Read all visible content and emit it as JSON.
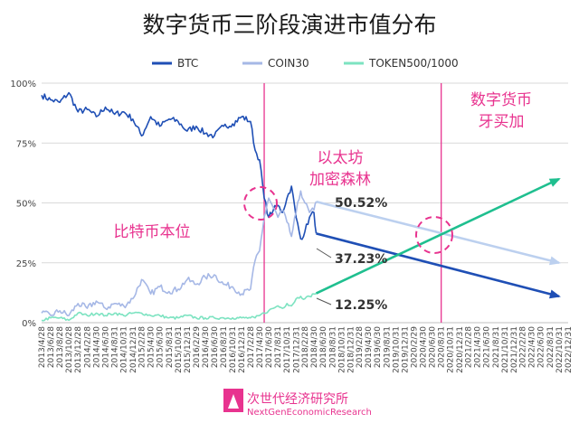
{
  "chart_data": {
    "type": "line",
    "title": "数字货币三阶段演进市值分布",
    "ylim": [
      0,
      100
    ],
    "y_ticks": [
      "0%",
      "25%",
      "50%",
      "75%",
      "100%"
    ],
    "x_ticks": [
      "2013/4/28",
      "2013/6/28",
      "2013/8/28",
      "2013/10/28",
      "2013/12/28",
      "2014/2/28",
      "2014/4/30",
      "2014/6/30",
      "2014/8/31",
      "2014/10/31",
      "2014/12/31",
      "2015/2/28",
      "2015/4/30",
      "2015/6/30",
      "2015/8/31",
      "2015/10/31",
      "2015/12/31",
      "2016/2/29",
      "2016/4/30",
      "2016/6/30",
      "2016/8/31",
      "2016/10/31",
      "2016/12/31",
      "2017/2/28",
      "2017/4/30",
      "2017/6/30",
      "2017/8/31",
      "2017/10/31",
      "2017/12/31",
      "2018/2/28",
      "2018/4/30",
      "2018/6/30",
      "2018/8/31",
      "2018/10/31",
      "2018/12/31",
      "2019/2/28",
      "2019/4/30",
      "2019/6/30",
      "2019/8/31",
      "2019/10/31",
      "2019/12/31",
      "2020/2/29",
      "2020/4/30",
      "2020/6/30",
      "2020/8/31",
      "2020/10/31",
      "2020/12/31",
      "2021/2/28",
      "2021/4/30",
      "2021/6/30",
      "2021/8/31",
      "2021/10/31",
      "2021/12/31",
      "2022/2/28",
      "2022/4/30",
      "2022/6/30",
      "2022/8/31",
      "2022/10/31",
      "2022/12/31"
    ],
    "grid": true,
    "legend_placement": "top",
    "series": [
      {
        "name": "BTC",
        "color": "#1f4fb5",
        "values": [
          [
            "2013/4/28",
            95
          ],
          [
            "2013/6/28",
            93
          ],
          [
            "2013/8/28",
            92
          ],
          [
            "2013/10/28",
            96
          ],
          [
            "2013/12/28",
            88
          ],
          [
            "2014/2/28",
            89
          ],
          [
            "2014/4/30",
            86
          ],
          [
            "2014/6/30",
            90
          ],
          [
            "2014/8/31",
            87
          ],
          [
            "2014/10/31",
            88
          ],
          [
            "2014/12/31",
            85
          ],
          [
            "2015/2/28",
            78
          ],
          [
            "2015/4/30",
            86
          ],
          [
            "2015/6/30",
            82
          ],
          [
            "2015/8/31",
            85
          ],
          [
            "2015/10/31",
            84
          ],
          [
            "2015/12/31",
            80
          ],
          [
            "2016/2/29",
            82
          ],
          [
            "2016/4/30",
            79
          ],
          [
            "2016/6/30",
            78
          ],
          [
            "2016/8/31",
            82
          ],
          [
            "2016/10/31",
            83
          ],
          [
            "2016/12/31",
            86
          ],
          [
            "2017/2/28",
            84
          ],
          [
            "2017/3/31",
            72
          ],
          [
            "2017/4/30",
            68
          ],
          [
            "2017/5/31",
            52
          ],
          [
            "2017/6/30",
            44
          ],
          [
            "2017/7/31",
            47
          ],
          [
            "2017/8/31",
            49
          ],
          [
            "2017/9/30",
            46
          ],
          [
            "2017/10/31",
            52
          ],
          [
            "2017/11/30",
            57
          ],
          [
            "2017/12/31",
            44
          ],
          [
            "2018/1/31",
            35
          ],
          [
            "2018/2/28",
            38
          ],
          [
            "2018/3/31",
            44
          ],
          [
            "2018/4/30",
            46
          ],
          [
            "2018/5/15",
            37.23
          ]
        ]
      },
      {
        "name": "COIN30",
        "color": "#a6b8e6",
        "values": [
          [
            "2013/4/28",
            4
          ],
          [
            "2013/6/28",
            3
          ],
          [
            "2013/8/28",
            5
          ],
          [
            "2013/10/28",
            3
          ],
          [
            "2013/12/28",
            8
          ],
          [
            "2014/2/28",
            6
          ],
          [
            "2014/4/30",
            9
          ],
          [
            "2014/6/30",
            6
          ],
          [
            "2014/8/31",
            8
          ],
          [
            "2014/10/31",
            7
          ],
          [
            "2014/12/31",
            10
          ],
          [
            "2015/2/28",
            18
          ],
          [
            "2015/4/30",
            12
          ],
          [
            "2015/6/30",
            15
          ],
          [
            "2015/8/31",
            13
          ],
          [
            "2015/10/31",
            14
          ],
          [
            "2015/12/31",
            18
          ],
          [
            "2016/2/29",
            16
          ],
          [
            "2016/4/30",
            19
          ],
          [
            "2016/6/30",
            20
          ],
          [
            "2016/8/31",
            16
          ],
          [
            "2016/10/31",
            15
          ],
          [
            "2016/12/31",
            12
          ],
          [
            "2017/2/28",
            14
          ],
          [
            "2017/3/31",
            26
          ],
          [
            "2017/4/30",
            30
          ],
          [
            "2017/5/31",
            44
          ],
          [
            "2017/6/30",
            52
          ],
          [
            "2017/7/31",
            48
          ],
          [
            "2017/8/31",
            44
          ],
          [
            "2017/9/30",
            47
          ],
          [
            "2017/10/31",
            42
          ],
          [
            "2017/11/30",
            36
          ],
          [
            "2017/12/31",
            46
          ],
          [
            "2018/1/31",
            55
          ],
          [
            "2018/2/28",
            50
          ],
          [
            "2018/3/31",
            46
          ],
          [
            "2018/4/30",
            47
          ],
          [
            "2018/5/15",
            50.52
          ]
        ]
      },
      {
        "name": "TOKEN500/1000",
        "color": "#7de3c1",
        "values": [
          [
            "2013/4/28",
            1
          ],
          [
            "2013/6/28",
            2
          ],
          [
            "2013/8/28",
            2
          ],
          [
            "2013/10/28",
            1
          ],
          [
            "2013/12/28",
            4
          ],
          [
            "2014/2/28",
            3
          ],
          [
            "2014/4/30",
            4
          ],
          [
            "2014/6/30",
            3
          ],
          [
            "2014/8/31",
            4
          ],
          [
            "2014/10/31",
            3
          ],
          [
            "2014/12/31",
            4
          ],
          [
            "2015/2/28",
            4
          ],
          [
            "2015/4/30",
            3
          ],
          [
            "2015/6/30",
            3
          ],
          [
            "2015/8/31",
            2
          ],
          [
            "2015/10/31",
            2
          ],
          [
            "2015/12/31",
            3
          ],
          [
            "2016/2/29",
            2
          ],
          [
            "2016/4/30",
            2
          ],
          [
            "2016/6/30",
            2
          ],
          [
            "2016/8/31",
            2
          ],
          [
            "2016/10/31",
            2
          ],
          [
            "2016/12/31",
            2
          ],
          [
            "2017/2/28",
            2
          ],
          [
            "2017/3/31",
            2
          ],
          [
            "2017/4/30",
            3
          ],
          [
            "2017/5/31",
            4
          ],
          [
            "2017/6/30",
            5
          ],
          [
            "2017/7/31",
            6
          ],
          [
            "2017/8/31",
            7
          ],
          [
            "2017/9/30",
            6
          ],
          [
            "2017/10/31",
            8
          ],
          [
            "2017/11/30",
            7
          ],
          [
            "2017/12/31",
            10
          ],
          [
            "2018/1/31",
            11
          ],
          [
            "2018/2/28",
            10
          ],
          [
            "2018/3/31",
            11
          ],
          [
            "2018/4/30",
            12
          ],
          [
            "2018/5/15",
            12.25
          ]
        ]
      }
    ],
    "projections": [
      {
        "name": "BTC",
        "color": "#1f4fb5",
        "values": [
          [
            "2018/5/15",
            37.23
          ],
          [
            "2022/10/31",
            11
          ]
        ]
      },
      {
        "name": "COIN30",
        "color": "#bcd0ef",
        "values": [
          [
            "2018/5/15",
            50.52
          ],
          [
            "2022/10/31",
            25
          ]
        ]
      },
      {
        "name": "TOKEN500/1000",
        "color": "#1fbf8f",
        "values": [
          [
            "2018/5/15",
            12.25
          ],
          [
            "2022/10/31",
            60
          ]
        ]
      }
    ],
    "vertical_markers": [
      "2017/5/31",
      "2020/8/31"
    ],
    "annotations": {
      "phase1": "比特币本位",
      "phase2_line1": "以太坊",
      "phase2_line2": "加密森林",
      "phase3_line1": "数字货币",
      "phase3_line2": "牙买加",
      "label_coin30": "50.52%",
      "label_btc": "37.23%",
      "label_token": "12.25%"
    }
  },
  "footer": {
    "cn": "次世代经济研究所",
    "en": "NextGenEconomicResearch"
  }
}
